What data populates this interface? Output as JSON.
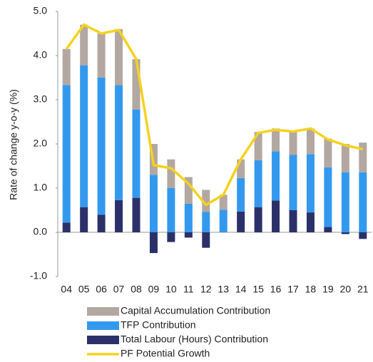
{
  "chart_data": {
    "type": "stacked-bar",
    "y_label": "Rate of change y-o-y (%)",
    "categories": [
      "04",
      "05",
      "06",
      "07",
      "08",
      "09",
      "10",
      "11",
      "12",
      "13",
      "14",
      "15",
      "16",
      "17",
      "18",
      "19",
      "20",
      "21"
    ],
    "series": [
      {
        "name": "Capital Accumulation Contribution",
        "type": "bar",
        "color": "#b3a7a1",
        "values": [
          0.82,
          0.92,
          1.0,
          1.27,
          1.14,
          0.7,
          0.65,
          0.6,
          0.5,
          0.34,
          0.42,
          0.64,
          0.52,
          0.52,
          0.58,
          0.65,
          0.64,
          0.67
        ]
      },
      {
        "name": "TFP Contribution",
        "type": "bar",
        "color": "#3399ee",
        "values": [
          3.11,
          3.21,
          3.1,
          2.6,
          2.0,
          1.3,
          1.0,
          0.65,
          0.46,
          0.51,
          0.76,
          1.06,
          1.11,
          1.25,
          1.32,
          1.35,
          1.36,
          1.36
        ]
      },
      {
        "name": "Total Labour (Hours) Contribution",
        "type": "bar",
        "color": "#2b3168",
        "values": [
          0.22,
          0.57,
          0.4,
          0.73,
          0.78,
          -0.47,
          -0.22,
          -0.12,
          -0.35,
          0,
          0.47,
          0.57,
          0.72,
          0.5,
          0.45,
          0.12,
          -0.04,
          -0.15
        ]
      },
      {
        "name": "PF Potential Growth",
        "type": "line",
        "color": "#f5d21e",
        "values": [
          4.15,
          4.7,
          4.5,
          4.58,
          3.92,
          1.52,
          1.45,
          1.1,
          0.62,
          0.85,
          1.65,
          2.25,
          2.32,
          2.28,
          2.35,
          2.1,
          1.97,
          1.88
        ]
      }
    ],
    "ylim": [
      -1,
      5
    ],
    "yticks": [
      {
        "value": -1,
        "label": "-1.0"
      },
      {
        "value": 0,
        "label": "0.0"
      },
      {
        "value": 1,
        "label": "1.0"
      },
      {
        "value": 2,
        "label": "2.0"
      },
      {
        "value": 3,
        "label": "3.0"
      },
      {
        "value": 4,
        "label": "4.0"
      },
      {
        "value": 5,
        "label": "5.0"
      }
    ]
  }
}
